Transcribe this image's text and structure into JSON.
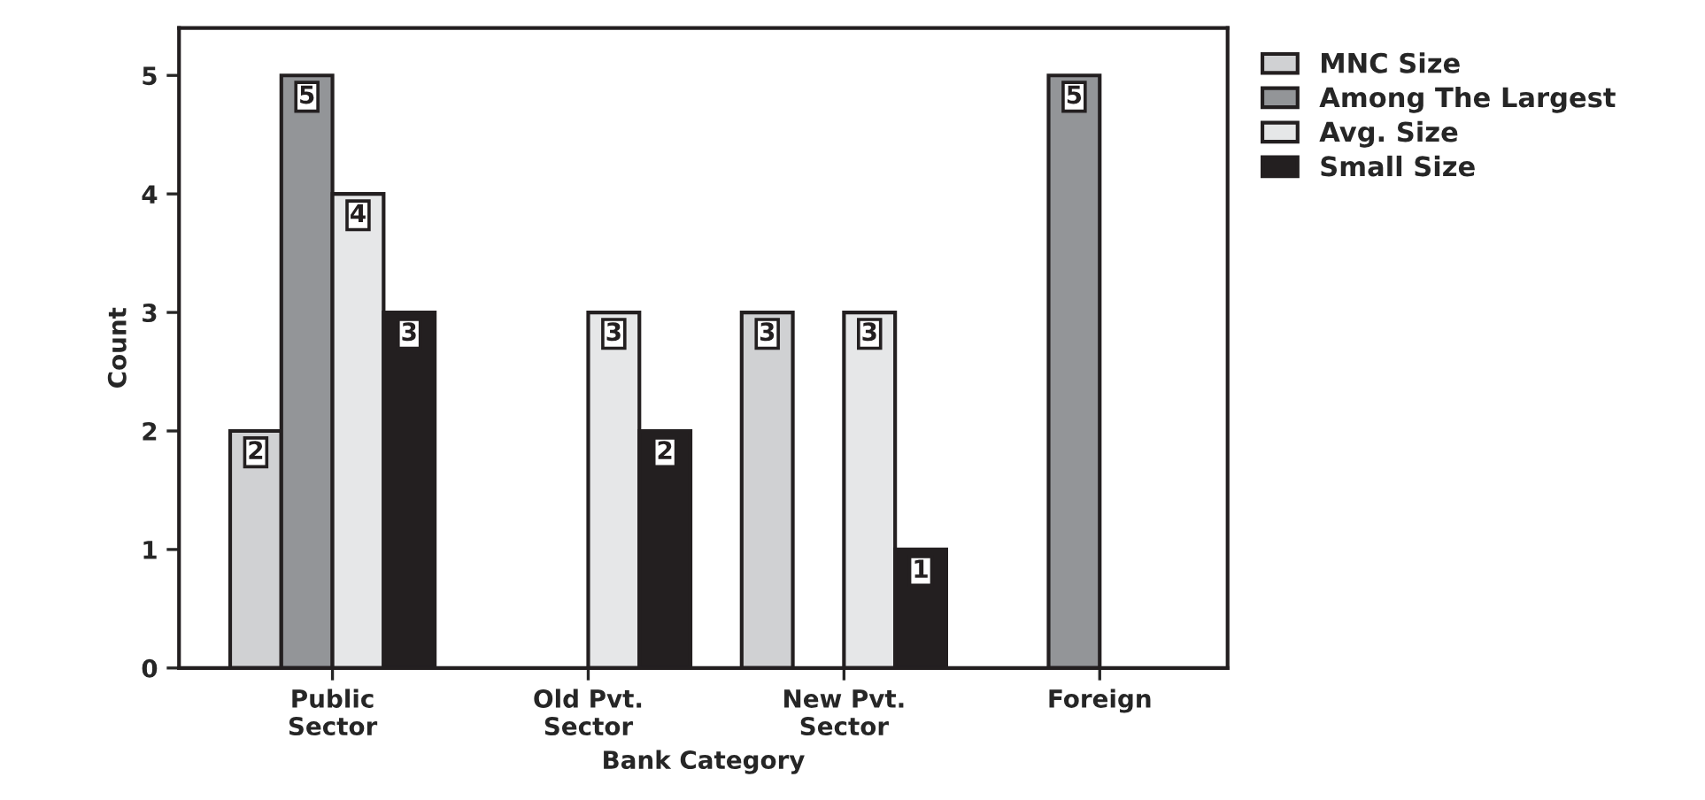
{
  "chart_data": {
    "type": "bar",
    "xlabel": "Bank Category",
    "ylabel": "Count",
    "categories": [
      "Public\nSector",
      "Old Pvt.\nSector",
      "New Pvt.\nSector",
      "Foreign"
    ],
    "series": [
      {
        "name": "MNC Size",
        "color": "#d0d1d3",
        "values": [
          2,
          null,
          3,
          null
        ]
      },
      {
        "name": "Among The Largest",
        "color": "#939598",
        "values": [
          5,
          null,
          null,
          5
        ]
      },
      {
        "name": "Avg. Size",
        "color": "#e6e7e8",
        "values": [
          4,
          3,
          3,
          null
        ]
      },
      {
        "name": "Small Size",
        "color": "#231f20",
        "values": [
          3,
          2,
          1,
          null
        ]
      }
    ],
    "ylim": [
      0,
      5.4
    ],
    "yticks": [
      0,
      1,
      2,
      3,
      4,
      5
    ],
    "data_labels": true,
    "legend": "top right",
    "grid": false
  }
}
